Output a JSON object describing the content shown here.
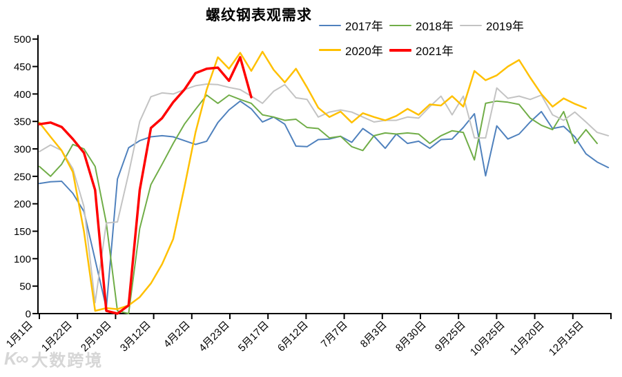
{
  "title": "螺纹钢表观需求",
  "watermark": {
    "logo": "K∞",
    "text": "大数跨境"
  },
  "chart_data": {
    "type": "line",
    "title": "螺纹钢表观需求",
    "xlabel": "",
    "ylabel": "",
    "grid": false,
    "legend_position": "top-right",
    "y_axis": {
      "min": 0,
      "max": 500,
      "step": 50
    },
    "y_tick_labels": [
      500,
      450,
      400,
      350,
      300,
      250,
      200,
      150,
      100,
      50,
      0
    ],
    "x_tick_labels": [
      "1月1日",
      "1月22日",
      "2月19日",
      "3月12日",
      "4月2日",
      "4月23日",
      "5月17日",
      "6月12日",
      "7月7日",
      "8月3日",
      "8月30日",
      "9月25日",
      "10月25日",
      "11月20日",
      "12月15日"
    ],
    "series": [
      {
        "name": "2017年",
        "color": "#4f81bd",
        "width": 2,
        "values": [
          237,
          240,
          241,
          219,
          186,
          98,
          10,
          245,
          302,
          315,
          322,
          324,
          322,
          315,
          308,
          314,
          348,
          371,
          387,
          373,
          349,
          358,
          345,
          305,
          304,
          317,
          318,
          323,
          312,
          337,
          323,
          301,
          327,
          310,
          314,
          301,
          317,
          318,
          339,
          364,
          251,
          342,
          318,
          327,
          349,
          368,
          337,
          341,
          322,
          291,
          276,
          266
        ]
      },
      {
        "name": "2018年",
        "color": "#70ad47",
        "width": 2,
        "values": [
          268,
          250,
          272,
          308,
          300,
          268,
          165,
          5,
          0,
          155,
          235,
          272,
          310,
          345,
          372,
          398,
          383,
          398,
          390,
          383,
          362,
          358,
          352,
          354,
          339,
          337,
          320,
          323,
          304,
          297,
          324,
          329,
          327,
          329,
          327,
          310,
          324,
          333,
          330,
          280,
          383,
          387,
          385,
          381,
          356,
          343,
          335,
          368,
          310,
          335,
          310
        ]
      },
      {
        "name": "2019年",
        "color": "#c3c3c3",
        "width": 2,
        "values": [
          295,
          307,
          297,
          264,
          195,
          20,
          165,
          167,
          255,
          350,
          395,
          402,
          400,
          408,
          415,
          418,
          417,
          412,
          408,
          396,
          383,
          405,
          417,
          393,
          390,
          358,
          367,
          371,
          367,
          358,
          349,
          352,
          352,
          358,
          356,
          377,
          396,
          362,
          396,
          320,
          320,
          411,
          392,
          396,
          390,
          398,
          362,
          352,
          367,
          349,
          330,
          324
        ]
      },
      {
        "name": "2020年",
        "color": "#ffc000",
        "width": 2.5,
        "values": [
          348,
          322,
          297,
          258,
          150,
          5,
          10,
          8,
          15,
          30,
          55,
          90,
          136,
          230,
          330,
          408,
          467,
          446,
          475,
          442,
          477,
          444,
          421,
          446,
          412,
          375,
          358,
          368,
          348,
          365,
          358,
          352,
          360,
          373,
          362,
          381,
          379,
          396,
          377,
          442,
          425,
          434,
          450,
          462,
          430,
          400,
          377,
          392,
          382,
          374
        ]
      },
      {
        "name": "2021年",
        "color": "#ff0000",
        "width": 3.5,
        "values": [
          345,
          348,
          340,
          318,
          293,
          225,
          5,
          0,
          15,
          225,
          338,
          356,
          385,
          408,
          438,
          446,
          448,
          424,
          467,
          394
        ]
      }
    ]
  }
}
